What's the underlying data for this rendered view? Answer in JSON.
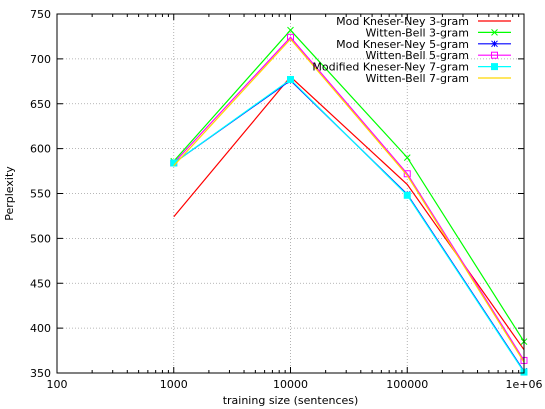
{
  "chart_data": {
    "type": "line",
    "title": "",
    "xlabel": "training size (sentences)",
    "ylabel": "Perplexity",
    "xscale": "log",
    "xlim": [
      100,
      1000000
    ],
    "ylim": [
      350,
      750
    ],
    "x_ticks": [
      {
        "value": 100,
        "label": "100"
      },
      {
        "value": 1000,
        "label": "1000"
      },
      {
        "value": 10000,
        "label": "10000"
      },
      {
        "value": 100000,
        "label": "100000"
      },
      {
        "value": 1000000,
        "label": "1e+06"
      }
    ],
    "y_ticks": [
      {
        "value": 350,
        "label": "350"
      },
      {
        "value": 400,
        "label": "400"
      },
      {
        "value": 450,
        "label": "450"
      },
      {
        "value": 500,
        "label": "500"
      },
      {
        "value": 550,
        "label": "550"
      },
      {
        "value": 600,
        "label": "600"
      },
      {
        "value": 650,
        "label": "650"
      },
      {
        "value": 700,
        "label": "700"
      },
      {
        "value": 750,
        "label": "750"
      }
    ],
    "grid": true,
    "legend_position": "top-right",
    "x": [
      1000,
      10000,
      100000,
      1000000
    ],
    "series": [
      {
        "name": "Mod Kneser-Ney 3-gram",
        "color": "#ff0000",
        "marker": "none",
        "values": [
          524,
          680,
          560,
          376
        ]
      },
      {
        "name": "Witten-Bell 3-gram",
        "color": "#00ff00",
        "marker": "x",
        "values": [
          586,
          732,
          590,
          385
        ]
      },
      {
        "name": "Mod Kneser-Ney 5-gram",
        "color": "#0000ff",
        "marker": "star",
        "values": [
          584,
          676,
          549,
          352
        ]
      },
      {
        "name": "Witten-Bell 5-gram",
        "color": "#ff00ff",
        "marker": "box",
        "values": [
          584,
          724,
          572,
          364
        ]
      },
      {
        "name": "Modified Kneser-Ney 7-gram",
        "color": "#00ffff",
        "marker": "filled-box",
        "values": [
          584,
          677,
          548,
          351
        ]
      },
      {
        "name": "Witten-Bell 7-gram",
        "color": "#ffd700",
        "marker": "none",
        "values": [
          581,
          722,
          570,
          362
        ]
      }
    ]
  }
}
